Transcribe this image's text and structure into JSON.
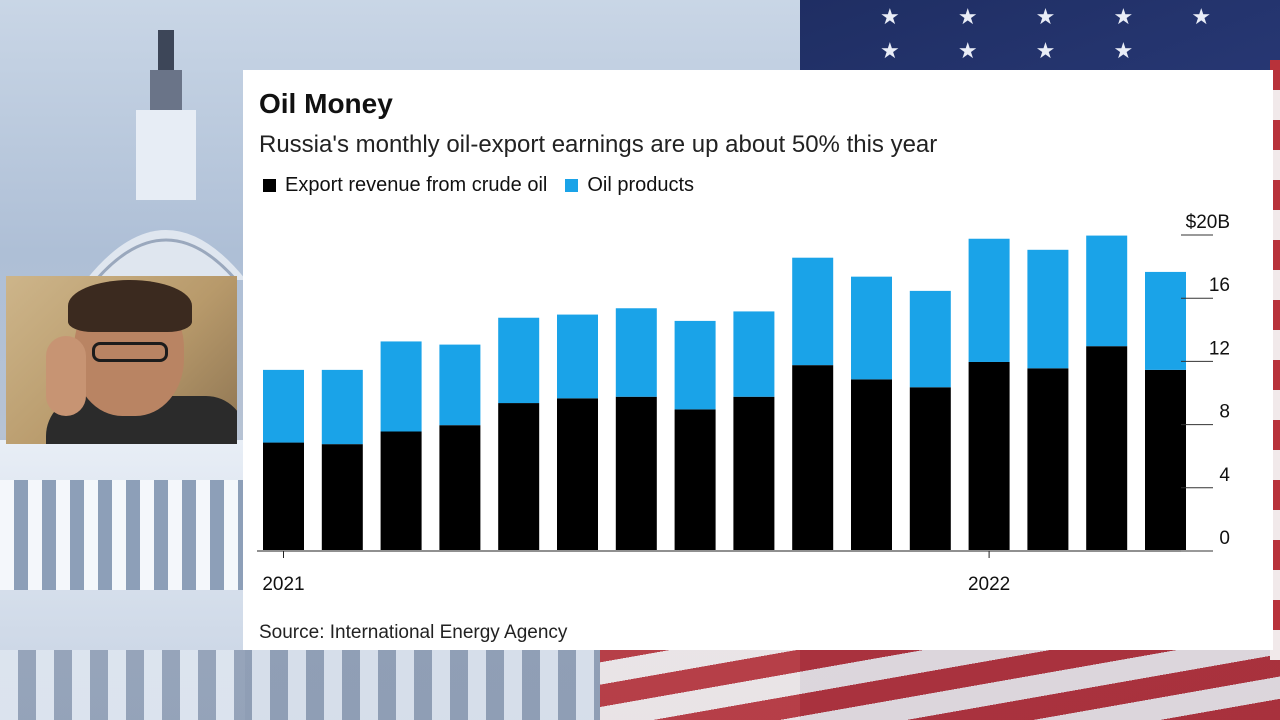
{
  "chart_data": {
    "type": "bar",
    "stacked": true,
    "title": "Oil Money",
    "subtitle": "Russia's monthly oil-export earnings are up about 50% this year",
    "series": [
      {
        "name": "Export revenue from crude oil",
        "color": "#000000",
        "values": [
          6.8,
          6.7,
          7.5,
          7.9,
          9.3,
          9.6,
          9.7,
          8.9,
          9.7,
          11.7,
          10.8,
          10.3,
          11.9,
          11.5,
          12.9,
          11.4
        ]
      },
      {
        "name": "Oil products",
        "color": "#1aa3e8",
        "values": [
          4.6,
          4.7,
          5.7,
          5.1,
          5.4,
          5.3,
          5.6,
          5.6,
          5.4,
          6.8,
          6.5,
          6.1,
          7.8,
          7.5,
          7.0,
          6.2
        ]
      }
    ],
    "x_tick_labels": [
      {
        "index": 0,
        "label": "2021"
      },
      {
        "index": 12,
        "label": "2022"
      }
    ],
    "y_ticks": [
      "0",
      "4",
      "8",
      "12",
      "16",
      "$20B"
    ],
    "ylim": [
      0,
      20
    ],
    "y_axis_side": "right",
    "legend_position": "top-left",
    "source": "Source: International Energy Agency"
  }
}
